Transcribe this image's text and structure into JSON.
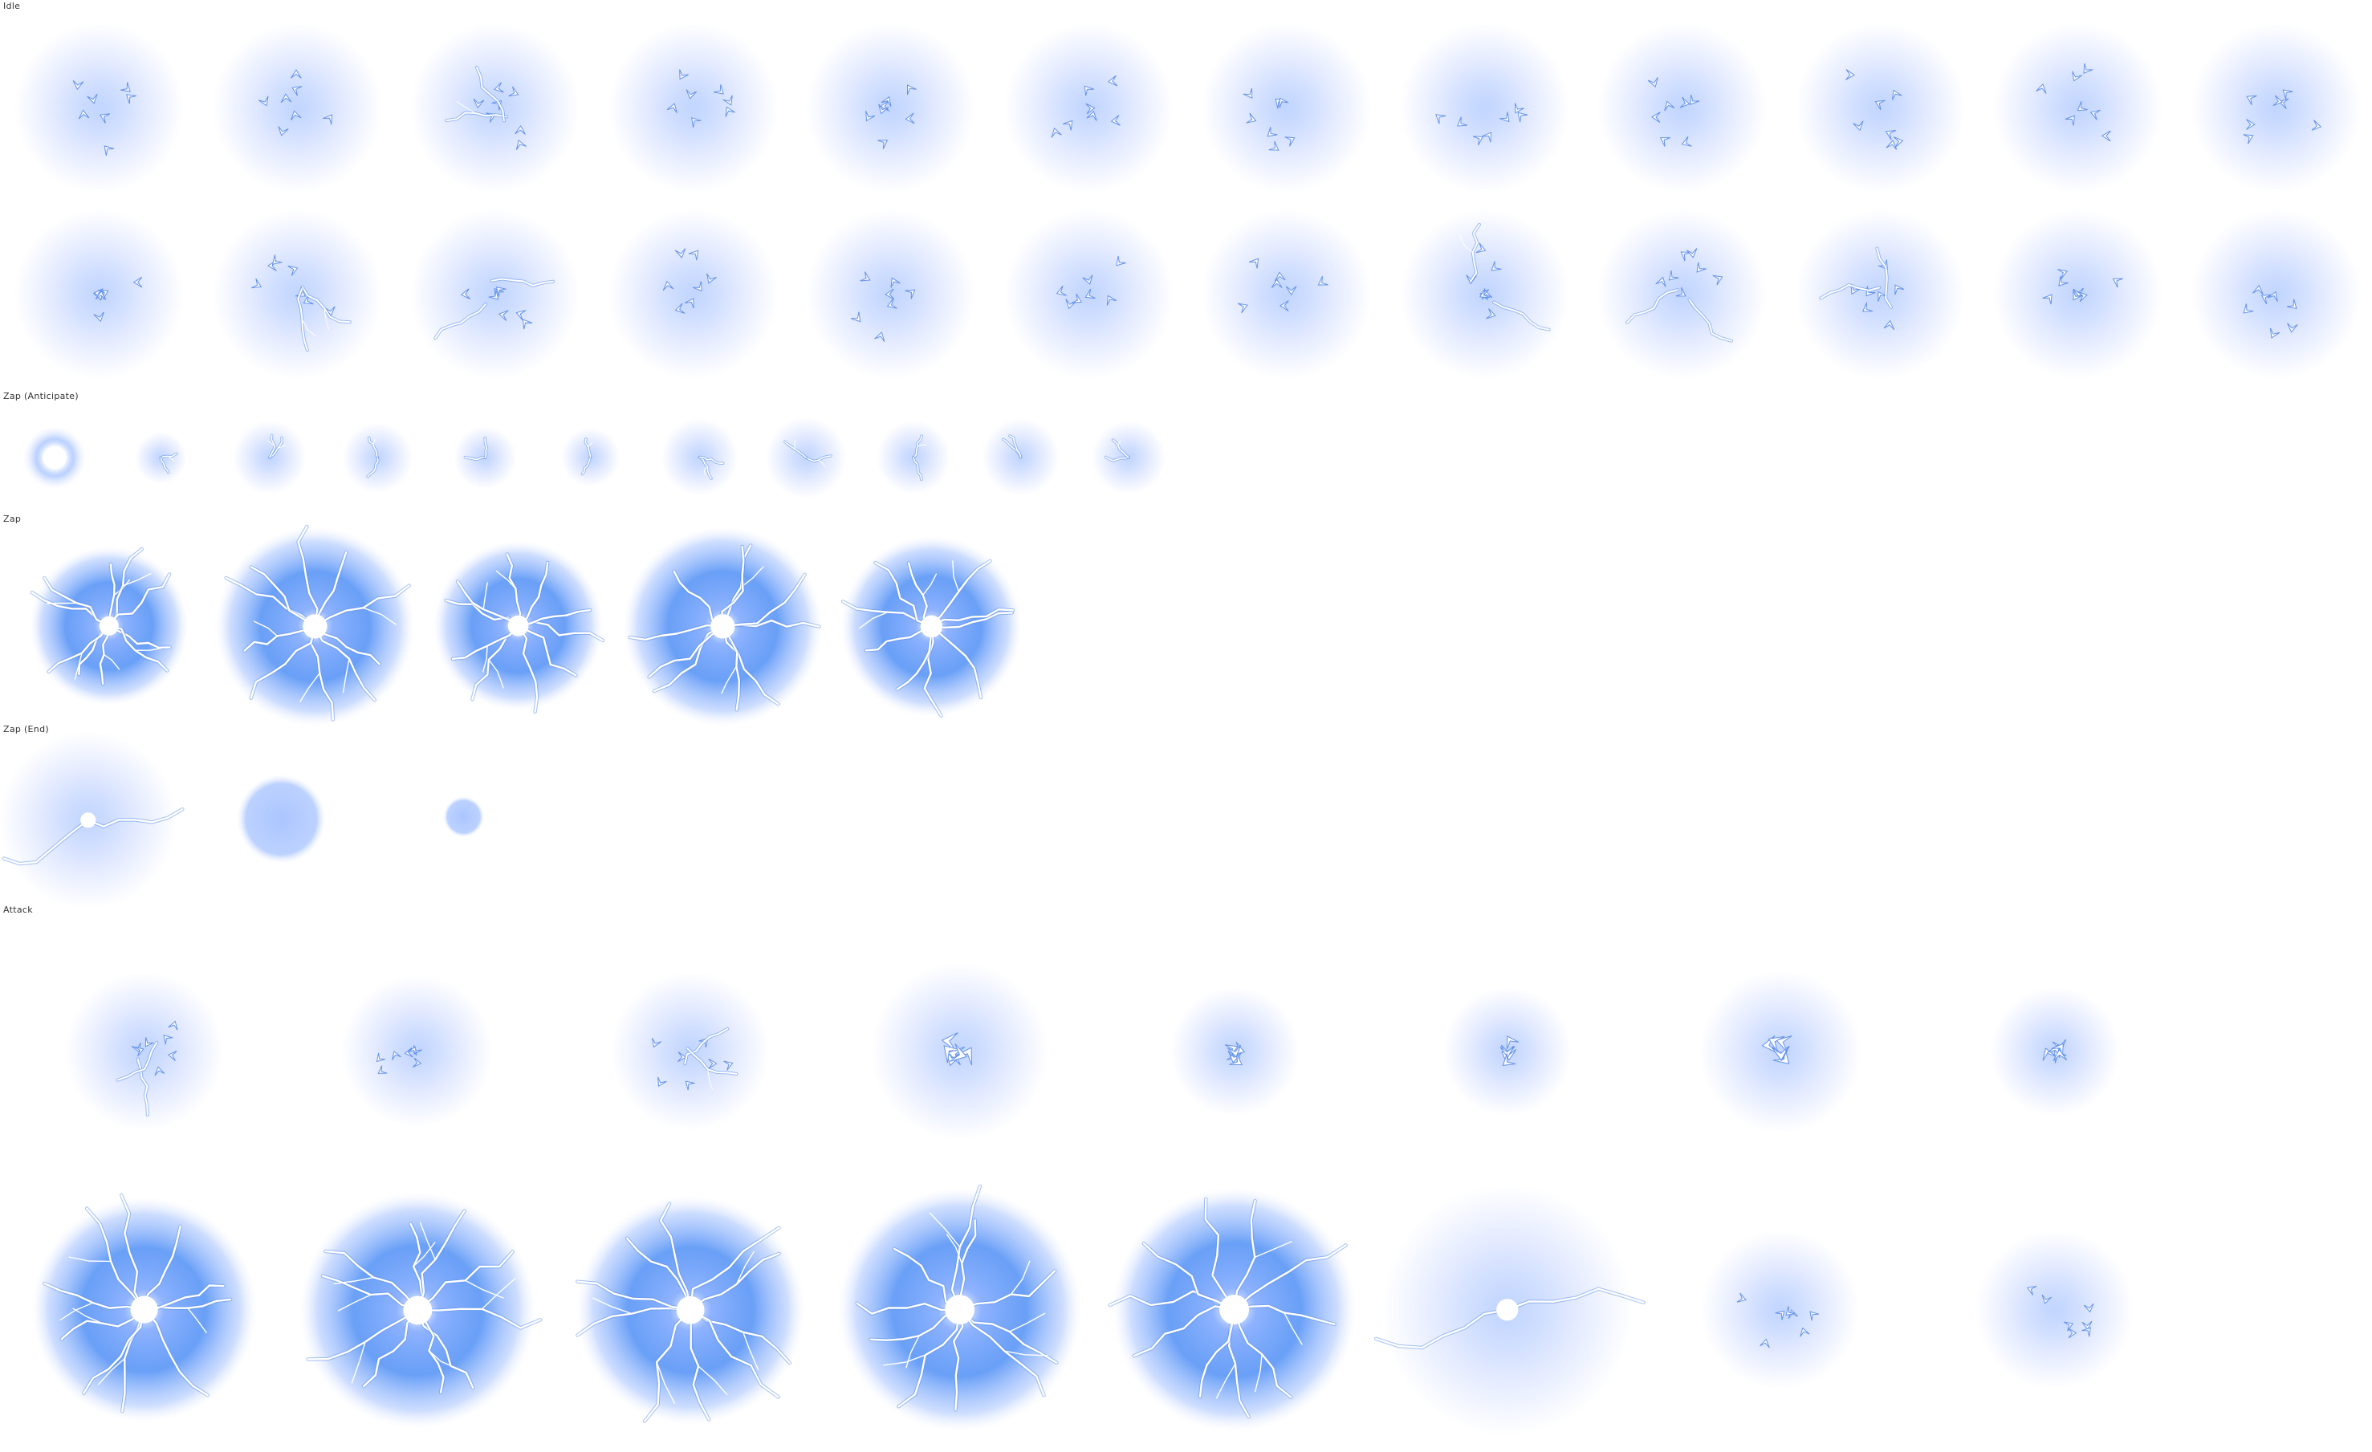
{
  "sections": {
    "idle": {
      "label": "Idle",
      "frame_count": 24
    },
    "zap_anticipate": {
      "label": "Zap (Anticipate)",
      "frame_count": 11
    },
    "zap": {
      "label": "Zap",
      "frame_count": 5
    },
    "zap_end": {
      "label": "Zap (End)",
      "frame_count": 3
    },
    "attack": {
      "label": "Attack",
      "frame_count": 16
    }
  },
  "colors": {
    "background": "#ffffff",
    "glow_core": "#8fb3ff",
    "glow_soft": "#d8e2ff",
    "orb_deep": "#4f8ff5",
    "lightning": "#ffffff",
    "lightning_edge": "#5f8fe8"
  },
  "icons": [
    "lightning-orb-icon"
  ]
}
